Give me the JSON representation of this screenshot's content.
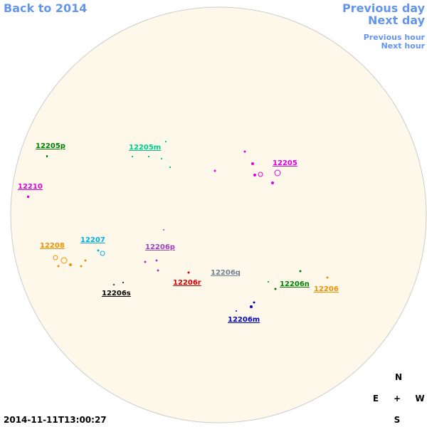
{
  "nav": {
    "back": "Back to 2014",
    "previous_day": "Previous day",
    "next_day": "Next day",
    "previous_hour": "Previous hour",
    "next_hour": "Next hour"
  },
  "regions": [
    {
      "label": "12205p"
    },
    {
      "label": "12205m"
    },
    {
      "label": "12205"
    },
    {
      "label": "12210"
    },
    {
      "label": "12207"
    },
    {
      "label": "12208"
    },
    {
      "label": "12206p"
    },
    {
      "label": "12206q"
    },
    {
      "label": "12206r"
    },
    {
      "label": "12206s"
    },
    {
      "label": "12206n"
    },
    {
      "label": "12206"
    },
    {
      "label": "12206m"
    }
  ],
  "timestamp": "2014-11-11T13:00:27",
  "compass": {
    "north": "N",
    "east": "E",
    "center": "+",
    "west": "W",
    "south": "S"
  }
}
